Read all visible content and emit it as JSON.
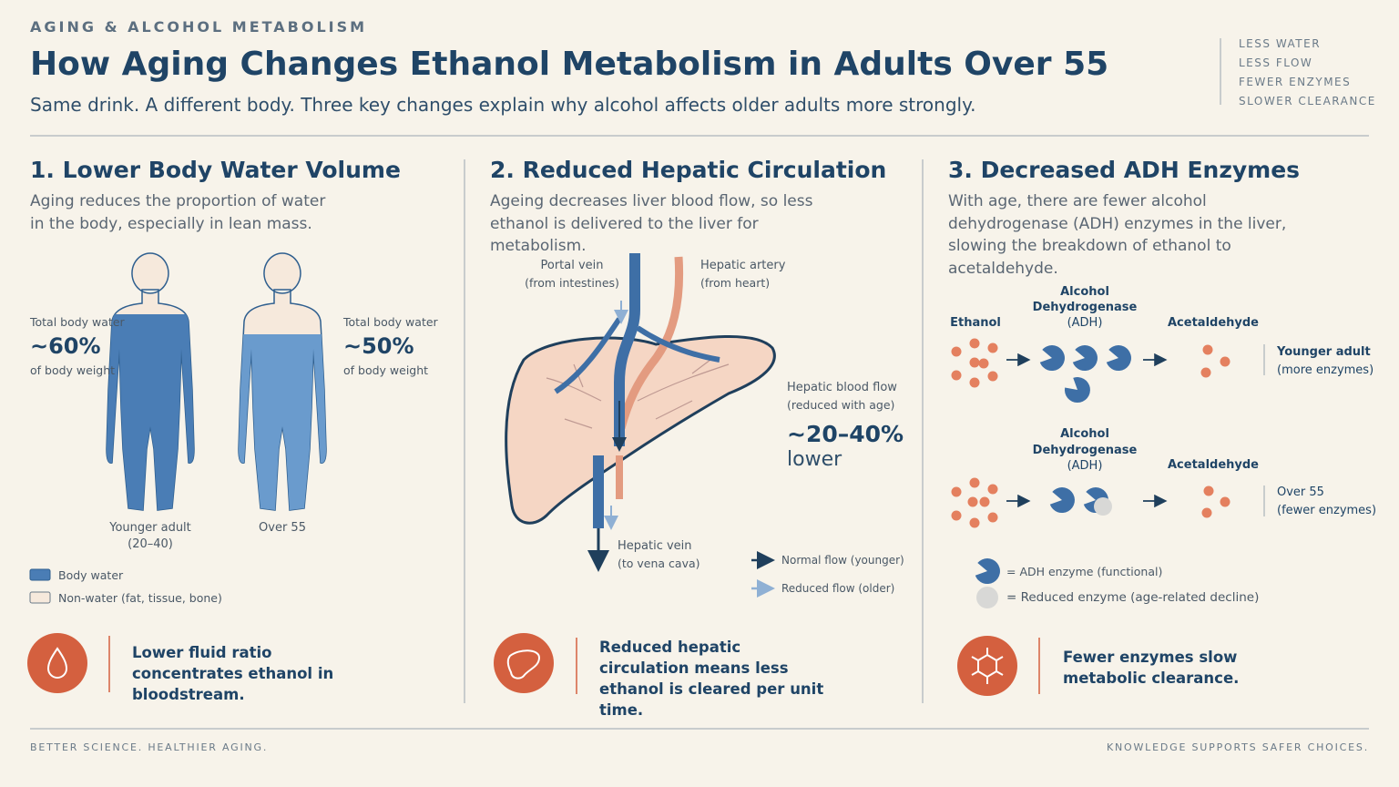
{
  "header": {
    "kicker": "AGING & ALCOHOL METABOLISM",
    "title": "How Aging Changes Ethanol Metabolism in Adults Over 55",
    "subtitle": "Same drink. A different body. Three key changes explain why alcohol affects older adults more strongly.",
    "tags": [
      "LESS WATER",
      "LESS FLOW",
      "FEWER ENZYMES",
      "SLOWER CLEARANCE"
    ]
  },
  "panels": [
    {
      "heading": "1. Lower Body Water Volume",
      "description": "Aging reduces the proportion of water in the body, especially in lean mass.",
      "younger": {
        "label_top": "Total body water",
        "value": "~60%",
        "label_bottom": "of body weight",
        "caption": "Younger adult",
        "caption_sub": "(20–40)"
      },
      "older": {
        "label_top": "Total body water",
        "value": "~50%",
        "label_bottom": "of body weight",
        "caption": "Over 55"
      },
      "legend": [
        "Body water",
        "Non-water (fat, tissue, bone)"
      ],
      "takeaway": "Lower fluid ratio concentrates ethanol in bloodstream."
    },
    {
      "heading": "2. Reduced Hepatic Circulation",
      "description": "Ageing decreases liver blood flow, so less ethanol is delivered to the liver for metabolism.",
      "portal_vein": [
        "Portal vein",
        "(from intestines)"
      ],
      "hepatic_artery": [
        "Hepatic artery",
        "(from heart)"
      ],
      "hepatic_vein": [
        "Hepatic vein",
        "(to vena cava)"
      ],
      "flow_label": "Hepatic blood flow",
      "flow_note": "(reduced with age)",
      "flow_value": "~20–40%",
      "flow_unit": "lower",
      "legend": [
        "Normal flow (younger)",
        "Reduced flow (older)"
      ],
      "takeaway": "Reduced hepatic circulation means less ethanol is cleared per unit time."
    },
    {
      "heading": "3. Decreased ADH Enzymes",
      "description": "With age, there are fewer alcohol dehydrogenase (ADH) enzymes in the liver, slowing the breakdown of ethanol to acetaldehyde.",
      "substrate": "Ethanol",
      "rows": [
        {
          "enzyme": [
            "Alcohol",
            "Dehydrogenase",
            "(ADH)"
          ],
          "product": "Acetaldehyde",
          "group": "Younger adult",
          "group_note": "(more enzymes)"
        },
        {
          "enzyme": [
            "Alcohol",
            "Dehydrogenase",
            "(ADH)"
          ],
          "product": "Acetaldehyde",
          "group": "Over 55",
          "group_note": "(fewer enzymes)"
        }
      ],
      "legend": [
        "= ADH enzyme (functional)",
        "= Reduced enzyme (age-related decline)"
      ],
      "takeaway": "Fewer enzymes slow metabolic clearance."
    }
  ],
  "footer": {
    "left": "BETTER SCIENCE. HEALTHIER AGING.",
    "right": "KNOWLEDGE SUPPORTS SAFER CHOICES."
  }
}
